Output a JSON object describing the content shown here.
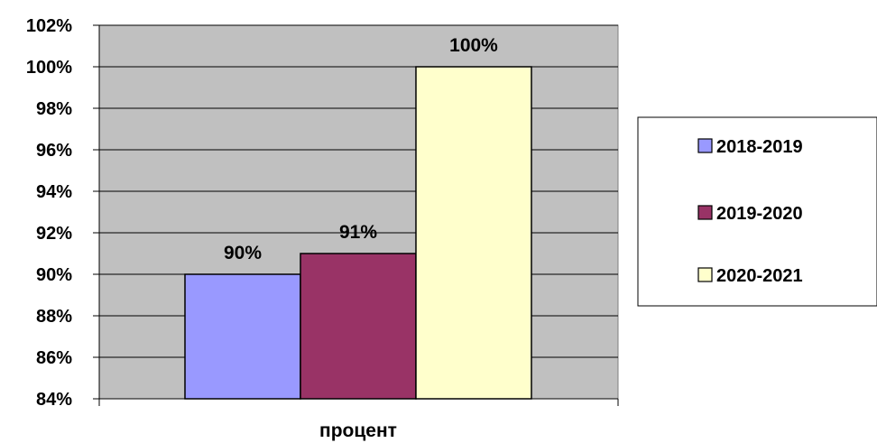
{
  "chart_data": {
    "type": "bar",
    "categories": [
      "процент"
    ],
    "series": [
      {
        "name": "2018-2019",
        "values": [
          90
        ],
        "label": "90%",
        "color": "#9999ff"
      },
      {
        "name": "2019-2020",
        "values": [
          91
        ],
        "label": "91%",
        "color": "#993366"
      },
      {
        "name": "2020-2021",
        "values": [
          100
        ],
        "label": "100%",
        "color": "#ffffcc"
      }
    ],
    "title": "",
    "xlabel": "",
    "ylabel": "",
    "ylim": [
      84,
      102
    ],
    "ytick_step": 2,
    "ytick_labels": [
      "84%",
      "86%",
      "88%",
      "90%",
      "92%",
      "94%",
      "96%",
      "98%",
      "100%",
      "102%"
    ],
    "grid": true,
    "legend": "right",
    "plot_background": "#c0c0c0"
  }
}
